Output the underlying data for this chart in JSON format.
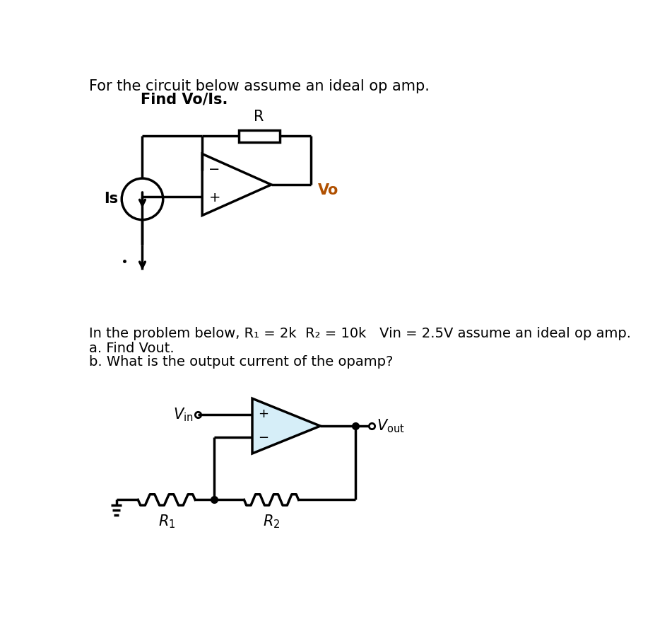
{
  "title_line1": "For the circuit below assume an ideal op amp.",
  "title_line2": "Find Vo/Is.",
  "problem2_line1": "In the problem below, R₁ = 2k  R₂ = 10k   Vin = 2.5V assume an ideal op amp.",
  "problem2_line2": "a. Find Vout.",
  "problem2_line3": "b. What is the output current of the opamp?",
  "bg_color": "#ffffff",
  "line_color": "#000000",
  "opamp2_fill": "#d6eef8",
  "vo_color": "#b05000"
}
